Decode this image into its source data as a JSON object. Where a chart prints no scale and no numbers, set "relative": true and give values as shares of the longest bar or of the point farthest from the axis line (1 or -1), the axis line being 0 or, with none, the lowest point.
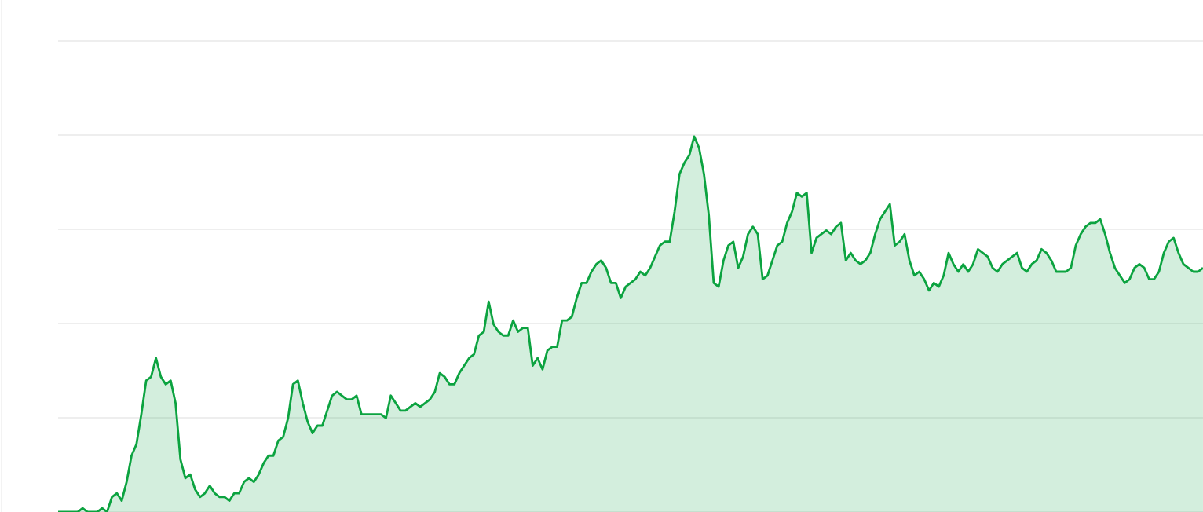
{
  "chart_data": {
    "type": "area",
    "relative": true,
    "grid": "y",
    "color": "#0ca340",
    "categories": [
      null,
      null,
      null,
      null,
      null,
      null,
      null,
      null,
      null,
      null,
      null,
      null,
      null,
      null,
      null,
      null,
      null,
      null,
      null,
      null,
      null,
      null,
      null,
      null,
      null,
      null,
      null,
      null,
      null,
      null,
      null,
      null,
      null,
      null,
      null,
      null,
      null,
      null,
      null,
      null,
      null,
      null,
      null,
      null,
      null,
      null,
      null,
      null,
      null,
      null,
      null,
      null,
      null,
      null,
      null,
      null,
      null,
      null,
      null,
      null,
      null,
      null,
      null,
      null,
      null,
      null,
      null,
      null,
      null,
      null,
      null,
      null,
      null,
      null,
      null,
      null,
      null,
      null,
      null,
      null,
      null,
      null,
      null,
      null,
      null,
      null,
      null,
      null,
      null,
      null,
      null,
      null,
      null,
      null,
      null,
      null,
      null,
      null,
      null,
      null,
      null,
      null,
      null,
      null,
      null,
      null,
      null,
      null,
      null,
      null,
      null,
      null,
      null,
      null,
      null,
      null,
      null,
      null,
      null,
      null,
      null,
      null,
      null,
      null,
      null,
      null,
      null,
      null,
      null,
      null,
      null,
      null,
      null,
      null,
      null,
      null,
      null,
      null,
      null,
      null,
      null,
      null,
      null,
      null,
      null,
      null,
      null,
      null,
      null,
      null,
      null,
      null,
      null,
      null,
      null,
      null,
      null,
      null,
      null,
      null,
      null,
      null,
      null,
      null,
      null,
      null,
      null,
      null,
      null,
      null,
      null,
      null,
      null,
      null,
      null,
      null,
      null,
      null,
      null,
      null,
      null,
      null,
      null,
      null,
      null,
      null,
      null,
      null,
      null,
      null,
      null,
      null,
      null,
      null,
      null,
      null,
      null,
      null,
      null,
      null,
      null,
      null,
      null,
      null,
      null,
      null,
      null,
      null,
      null,
      null,
      null,
      null,
      null,
      null,
      null,
      null,
      null,
      null,
      null,
      null,
      null,
      null,
      null,
      null,
      null,
      null,
      null,
      null,
      null,
      null,
      null,
      null,
      null,
      null,
      null
    ],
    "values": [
      0,
      0,
      0,
      0,
      0,
      0.01,
      0,
      0,
      0,
      0.01,
      0,
      0.04,
      0.05,
      0.03,
      0.08,
      0.15,
      0.18,
      0.26,
      0.35,
      0.36,
      0.41,
      0.36,
      0.34,
      0.35,
      0.29,
      0.14,
      0.09,
      0.1,
      0.06,
      0.04,
      0.05,
      0.07,
      0.05,
      0.04,
      0.04,
      0.03,
      0.05,
      0.05,
      0.08,
      0.09,
      0.08,
      0.1,
      0.13,
      0.15,
      0.15,
      0.19,
      0.2,
      0.25,
      0.34,
      0.35,
      0.29,
      0.24,
      0.21,
      0.23,
      0.23,
      0.27,
      0.31,
      0.32,
      0.31,
      0.3,
      0.3,
      0.31,
      0.26,
      0.26,
      0.26,
      0.26,
      0.26,
      0.25,
      0.31,
      0.29,
      0.27,
      0.27,
      0.28,
      0.29,
      0.28,
      0.29,
      0.3,
      0.32,
      0.37,
      0.36,
      0.34,
      0.34,
      0.37,
      0.39,
      0.41,
      0.42,
      0.47,
      0.48,
      0.56,
      0.5,
      0.48,
      0.47,
      0.47,
      0.51,
      0.48,
      0.49,
      0.49,
      0.39,
      0.41,
      0.38,
      0.43,
      0.44,
      0.44,
      0.51,
      0.51,
      0.52,
      0.57,
      0.61,
      0.61,
      0.64,
      0.66,
      0.67,
      0.65,
      0.61,
      0.61,
      0.57,
      0.6,
      0.61,
      0.62,
      0.64,
      0.63,
      0.65,
      0.68,
      0.71,
      0.72,
      0.72,
      0.8,
      0.9,
      0.93,
      0.95,
      1,
      0.97,
      0.9,
      0.79,
      0.61,
      0.6,
      0.67,
      0.71,
      0.72,
      0.65,
      0.68,
      0.74,
      0.76,
      0.74,
      0.62,
      0.63,
      0.67,
      0.71,
      0.72,
      0.77,
      0.8,
      0.85,
      0.84,
      0.85,
      0.69,
      0.73,
      0.74,
      0.75,
      0.74,
      0.76,
      0.77,
      0.67,
      0.69,
      0.67,
      0.66,
      0.67,
      0.69,
      0.74,
      0.78,
      0.8,
      0.82,
      0.71,
      0.72,
      0.74,
      0.67,
      0.63,
      0.64,
      0.62,
      0.59,
      0.61,
      0.6,
      0.63,
      0.69,
      0.66,
      0.64,
      0.66,
      0.64,
      0.66,
      0.7,
      0.69,
      0.68,
      0.65,
      0.64,
      0.66,
      0.67,
      0.68,
      0.69,
      0.65,
      0.64,
      0.66,
      0.67,
      0.7,
      0.69,
      0.67,
      0.64,
      0.64,
      0.64,
      0.65,
      0.71,
      0.74,
      0.76,
      0.77,
      0.77,
      0.78,
      0.74,
      0.69,
      0.65,
      0.63,
      0.61,
      0.62,
      0.65,
      0.66,
      0.65,
      0.62,
      0.62,
      0.64,
      0.69,
      0.72,
      0.73,
      0.69,
      0.66,
      0.65,
      0.64,
      0.64,
      0.65
    ]
  }
}
